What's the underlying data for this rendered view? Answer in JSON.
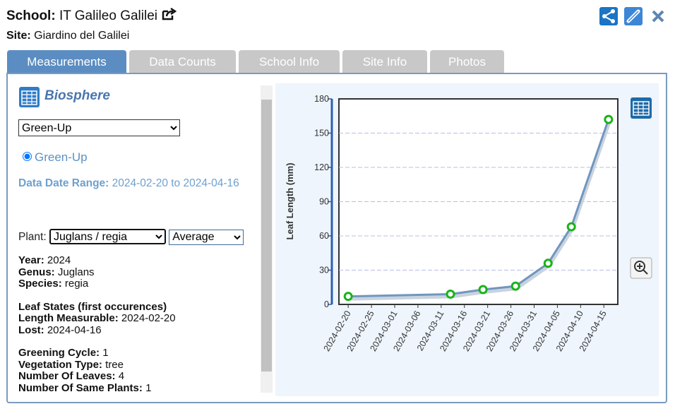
{
  "header": {
    "school_label": "School:",
    "school": "IT Galileo Galilei",
    "site_label": "Site:",
    "site": "Giardino del Galilei"
  },
  "tabs": [
    "Measurements",
    "Data Counts",
    "School Info",
    "Site Info",
    "Photos"
  ],
  "panel": {
    "title": "Biosphere",
    "protocol_select": "Green-Up",
    "radio": "Green-Up",
    "range_label": "Data Date Range:",
    "range_value": "2024-02-20 to 2024-04-16",
    "plant_label": "Plant:",
    "plant_select": "Juglans / regia",
    "stat_select": "Average",
    "info_groups": [
      {
        "fields": [
          {
            "label": "Year:",
            "value": "2024"
          },
          {
            "label": "Genus:",
            "value": "Juglans"
          },
          {
            "label": "Species:",
            "value": "regia"
          }
        ]
      },
      {
        "heading": "Leaf States (first occurences)",
        "fields": [
          {
            "label": "Length Measurable:",
            "value": "2024-02-20"
          },
          {
            "label": "Lost:",
            "value": "2024-04-16"
          }
        ]
      },
      {
        "fields": [
          {
            "label": "Greening Cycle:",
            "value": "1"
          },
          {
            "label": "Vegetation Type:",
            "value": "tree"
          },
          {
            "label": "Number Of Leaves:",
            "value": "4"
          },
          {
            "label": "Number Of Same Plants:",
            "value": "1"
          }
        ]
      }
    ]
  },
  "chart_data": {
    "type": "line",
    "y_label": "Leaf Length (mm)",
    "x": [
      "2024-02-20",
      "2024-03-13",
      "2024-03-20",
      "2024-03-27",
      "2024-04-03",
      "2024-04-08",
      "2024-04-16"
    ],
    "series": [
      {
        "name": "Leaf Length",
        "color": "#7096c0",
        "marker_color": "#18b418",
        "values": [
          7,
          9,
          13,
          16,
          36,
          68,
          162
        ]
      }
    ],
    "xlim": [
      "2024-02-18",
      "2024-04-18"
    ],
    "xticks": [
      "2024-02-20",
      "2024-02-25",
      "2024-03-01",
      "2024-03-06",
      "2024-03-11",
      "2024-03-16",
      "2024-03-21",
      "2024-03-26",
      "2024-03-31",
      "2024-04-05",
      "2024-04-10",
      "2024-04-15"
    ],
    "ylim": [
      0,
      180
    ],
    "yticks": [
      0,
      30,
      60,
      90,
      120,
      150,
      180
    ],
    "grid": true
  }
}
